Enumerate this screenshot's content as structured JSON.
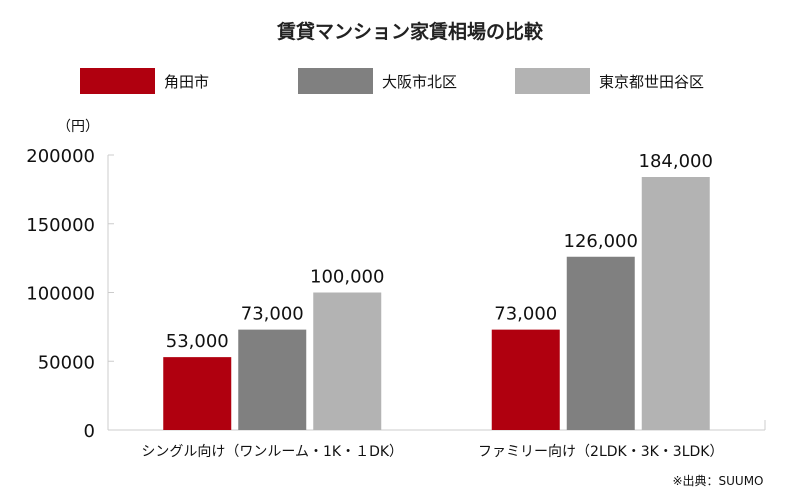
{
  "chart_data": {
    "type": "bar",
    "title": "賃貸マンション家賃相場の比較",
    "y_unit_label": "（円）",
    "source": "※出典：SUUMO",
    "categories": [
      "シングル向け（ワンルーム・1K・１DK）",
      "ファミリー向け（2LDK・3K・3LDK）"
    ],
    "series": [
      {
        "name": "角田市",
        "color": "#b0000f",
        "values": [
          53000,
          73000
        ],
        "labels": [
          "53,000",
          "73,000"
        ]
      },
      {
        "name": "大阪市北区",
        "color": "#808080",
        "values": [
          73000,
          126000
        ],
        "labels": [
          "73,000",
          "126,000"
        ]
      },
      {
        "name": "東京都世田谷区",
        "color": "#b3b3b3",
        "values": [
          100000,
          184000
        ],
        "labels": [
          "100,000",
          "184,000"
        ]
      }
    ],
    "ylim": [
      0,
      200000
    ],
    "yticks": [
      0,
      50000,
      100000,
      150000,
      200000
    ],
    "ytick_labels": [
      "0",
      "50000",
      "100000",
      "150000",
      "200000"
    ],
    "grid": false,
    "legend_position": "top"
  }
}
